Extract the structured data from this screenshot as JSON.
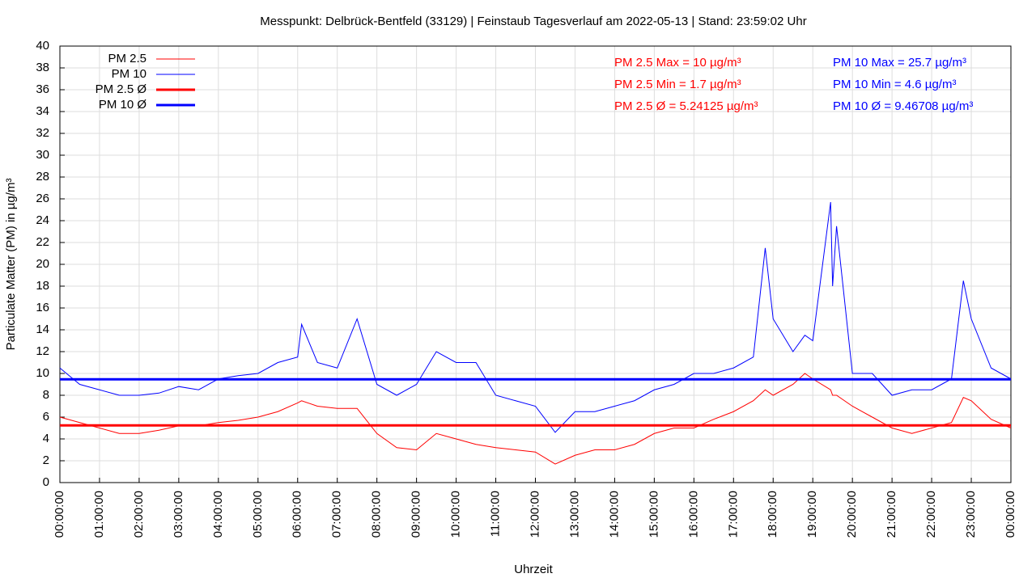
{
  "chart_data": {
    "type": "line",
    "title": "Messpunkt: Delbrück-Bentfeld (33129) | Feinstaub Tagesverlauf am 2022-05-13 | Stand: 23:59:02 Uhr",
    "x_label": "Uhrzeit",
    "y_label": "Particulate Matter (PM) in µg/m³",
    "x": [
      0,
      0.5,
      1,
      1.5,
      2,
      2.5,
      3,
      3.5,
      4,
      4.5,
      5,
      5.5,
      6,
      6.1,
      6.5,
      7,
      7.5,
      8,
      8.5,
      9,
      9.5,
      10,
      10.5,
      11,
      11.5,
      12,
      12.5,
      13,
      13.5,
      14,
      14.5,
      15,
      15.5,
      16,
      16.5,
      17,
      17.5,
      17.8,
      18,
      18.5,
      18.8,
      19,
      19.45,
      19.5,
      19.6,
      20,
      20.5,
      21,
      21.5,
      22,
      22.5,
      22.8,
      23,
      23.5,
      24
    ],
    "series": [
      {
        "name": "PM 2.5",
        "color": "#ff0000",
        "line_width": 1,
        "values": [
          6,
          5.5,
          5,
          4.5,
          4.5,
          4.8,
          5.2,
          5.2,
          5.5,
          5.7,
          6,
          6.5,
          7.3,
          7.5,
          7,
          6.8,
          6.8,
          4.5,
          3.2,
          3,
          4.5,
          4,
          3.5,
          3.2,
          3,
          2.8,
          1.7,
          2.5,
          3,
          3,
          3.5,
          4.5,
          5,
          5,
          5.8,
          6.5,
          7.5,
          8.5,
          8,
          9,
          10,
          9.5,
          8.5,
          8,
          8,
          7,
          6,
          5,
          4.5,
          5,
          5.5,
          7.8,
          7.5,
          5.8,
          5
        ]
      },
      {
        "name": "PM 10",
        "color": "#0000ff",
        "line_width": 1,
        "values": [
          10.5,
          9,
          8.5,
          8,
          8,
          8.2,
          8.8,
          8.5,
          9.5,
          9.8,
          10,
          11,
          11.5,
          14.5,
          11,
          10.5,
          15,
          9,
          8,
          9,
          12,
          11,
          11,
          8,
          7.5,
          7,
          4.6,
          6.5,
          6.5,
          7,
          7.5,
          8.5,
          9,
          10,
          10,
          10.5,
          11.5,
          21.5,
          15,
          12,
          13.5,
          13,
          25.7,
          18,
          23.5,
          10,
          10,
          8,
          8.5,
          8.5,
          9.5,
          18.5,
          15,
          10.5,
          9.5
        ]
      },
      {
        "name": "PM 2.5 Ø",
        "color": "#ff0000",
        "line_width": 3,
        "value": 5.24125
      },
      {
        "name": "PM 10 Ø",
        "color": "#0000ff",
        "line_width": 3,
        "value": 9.46708
      }
    ],
    "annotations": [
      {
        "text": "PM 2.5 Max = 10 µg/m³",
        "color": "#ff0000"
      },
      {
        "text": "PM 2.5 Min = 1.7 µg/m³",
        "color": "#ff0000"
      },
      {
        "text": "PM 2.5 Ø = 5.24125 µg/m³",
        "color": "#ff0000"
      },
      {
        "text": "PM 10 Max = 25.7 µg/m³",
        "color": "#0000ff"
      },
      {
        "text": "PM 10 Min = 4.6 µg/m³",
        "color": "#0000ff"
      },
      {
        "text": "PM 10 Ø = 9.46708 µg/m³",
        "color": "#0000ff"
      }
    ],
    "xlim": [
      0,
      24
    ],
    "xticks": [
      {
        "value": 0,
        "label": "00:00:00"
      },
      {
        "value": 1,
        "label": "01:00:00"
      },
      {
        "value": 2,
        "label": "02:00:00"
      },
      {
        "value": 3,
        "label": "03:00:00"
      },
      {
        "value": 4,
        "label": "04:00:00"
      },
      {
        "value": 5,
        "label": "05:00:00"
      },
      {
        "value": 6,
        "label": "06:00:00"
      },
      {
        "value": 7,
        "label": "07:00:00"
      },
      {
        "value": 8,
        "label": "08:00:00"
      },
      {
        "value": 9,
        "label": "09:00:00"
      },
      {
        "value": 10,
        "label": "10:00:00"
      },
      {
        "value": 11,
        "label": "11:00:00"
      },
      {
        "value": 12,
        "label": "12:00:00"
      },
      {
        "value": 13,
        "label": "13:00:00"
      },
      {
        "value": 14,
        "label": "14:00:00"
      },
      {
        "value": 15,
        "label": "15:00:00"
      },
      {
        "value": 16,
        "label": "16:00:00"
      },
      {
        "value": 17,
        "label": "17:00:00"
      },
      {
        "value": 18,
        "label": "18:00:00"
      },
      {
        "value": 19,
        "label": "19:00:00"
      },
      {
        "value": 20,
        "label": "20:00:00"
      },
      {
        "value": 21,
        "label": "21:00:00"
      },
      {
        "value": 22,
        "label": "22:00:00"
      },
      {
        "value": 23,
        "label": "23:00:00"
      },
      {
        "value": 24,
        "label": "00:00:00"
      }
    ],
    "ylim": [
      0,
      40
    ],
    "yticks": [
      0,
      2,
      4,
      6,
      8,
      10,
      12,
      14,
      16,
      18,
      20,
      22,
      24,
      26,
      28,
      30,
      32,
      34,
      36,
      38,
      40
    ],
    "grid": true,
    "legend": "top-left"
  }
}
